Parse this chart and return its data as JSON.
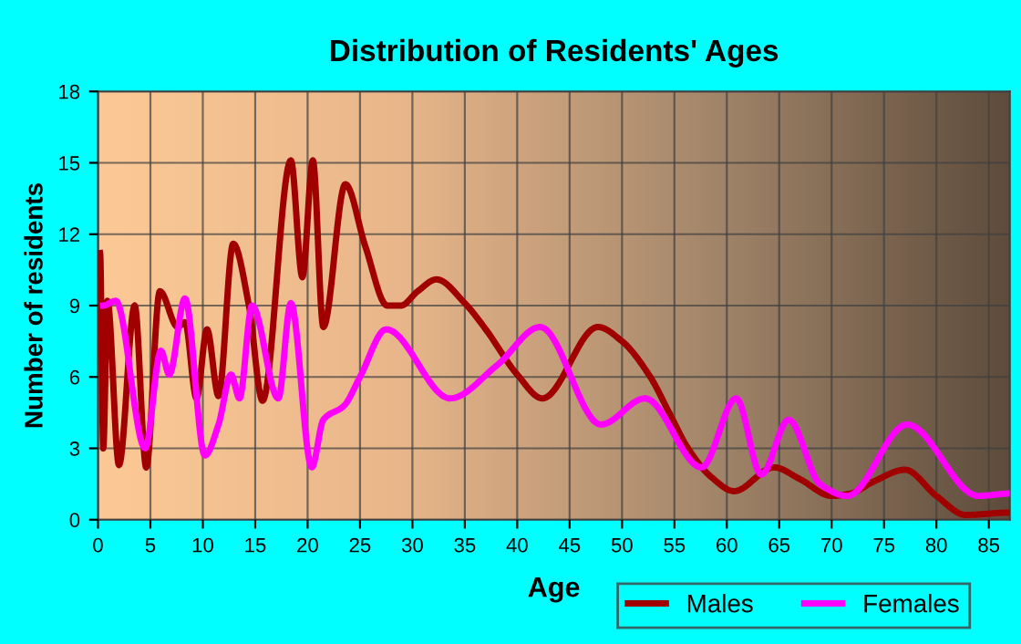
{
  "chart_data": {
    "type": "line",
    "title": "Distribution of Residents' Ages",
    "xlabel": "Age",
    "ylabel": "Number of residents",
    "xlim": [
      0,
      87
    ],
    "xticks": [
      0,
      5,
      10,
      15,
      20,
      25,
      30,
      35,
      40,
      45,
      50,
      55,
      60,
      65,
      70,
      75,
      80,
      85
    ],
    "ylim": [
      0,
      18
    ],
    "yticks": [
      0,
      3,
      6,
      9,
      12,
      15,
      18
    ],
    "grid": true,
    "legend": "bottom right",
    "series": [
      {
        "name": "Males",
        "color": "#a00000",
        "x": [
          0.2,
          0.5,
          0.9,
          2,
          3.5,
          4.6,
          5.9,
          7.6,
          8.3,
          9.4,
          10.4,
          11.5,
          12.9,
          14.4,
          15.7,
          18.4,
          19.5,
          20.5,
          21.5,
          23.6,
          25.5,
          27.6,
          28.9,
          30.5,
          32.3,
          35,
          37,
          40,
          42.4,
          47.7,
          50,
          52.7,
          54.5,
          56.3,
          58.5,
          60.7,
          64.5,
          67,
          70,
          71.8,
          74,
          77,
          80,
          82.8,
          87
        ],
        "values": [
          11.2,
          3,
          9.2,
          2.3,
          9,
          2.2,
          9.6,
          8.1,
          8.3,
          5.1,
          8,
          5.2,
          11.6,
          9,
          5,
          15.1,
          10.2,
          15.1,
          8.1,
          14.1,
          11.5,
          9,
          9,
          9.6,
          10.1,
          9.1,
          8,
          6.1,
          5.1,
          8.1,
          7.5,
          6,
          4.5,
          3,
          1.8,
          1.2,
          2.2,
          1.7,
          1,
          1.1,
          1.6,
          2.1,
          1,
          0.2,
          0.3
        ]
      },
      {
        "name": "Females",
        "color": "#ff00ff",
        "x": [
          0.5,
          1.7,
          4.5,
          6,
          6.8,
          8.3,
          10.2,
          11.5,
          12.7,
          13.5,
          14.7,
          17.2,
          18.4,
          20.4,
          21.5,
          23.5,
          25,
          27.5,
          33.6,
          38.1,
          42.2,
          48,
          52.2,
          57.6,
          60.9,
          63.3,
          65.9,
          68.9,
          71.5,
          77.2,
          84,
          87
        ],
        "values": [
          9,
          9.2,
          3,
          7.1,
          6.1,
          9.3,
          2.7,
          4,
          6.1,
          5.1,
          9,
          5.1,
          9.1,
          2.2,
          4.2,
          4.8,
          6,
          8,
          5.1,
          6.5,
          8.1,
          4,
          5.1,
          2.2,
          5.1,
          1.9,
          4.2,
          1.5,
          1,
          4,
          1,
          1.1
        ]
      }
    ]
  }
}
